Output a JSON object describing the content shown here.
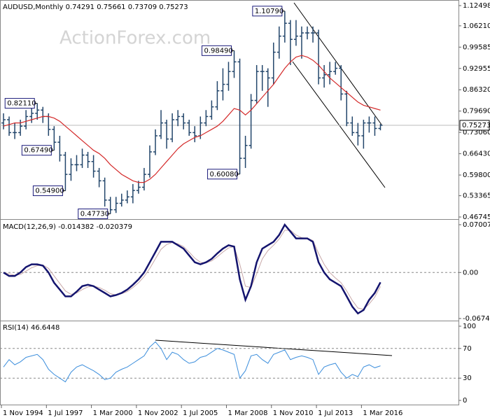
{
  "chart_data": [
    {
      "type": "ohlc",
      "title": "AUDUSD,Monthly",
      "watermark": "ActionForex.com",
      "color": "#23466b",
      "ma_color": "#d42a2a",
      "x": [
        "1994-11",
        "1995-03",
        "1995-07",
        "1995-11",
        "1996-03",
        "1996-07",
        "1996-11",
        "1997-03",
        "1997-07",
        "1997-11",
        "1998-03",
        "1998-07",
        "1998-11",
        "1999-03",
        "1999-07",
        "1999-11",
        "2000-03",
        "2000-07",
        "2000-11",
        "2001-03",
        "2001-07",
        "2001-11",
        "2002-03",
        "2002-07",
        "2002-11",
        "2003-03",
        "2003-07",
        "2003-11",
        "2004-03",
        "2004-07",
        "2004-11",
        "2005-03",
        "2005-07",
        "2005-11",
        "2006-03",
        "2006-07",
        "2006-11",
        "2007-03",
        "2007-07",
        "2007-11",
        "2008-03",
        "2008-07",
        "2008-11",
        "2009-03",
        "2009-07",
        "2009-11",
        "2010-03",
        "2010-07",
        "2010-11",
        "2011-03",
        "2011-07",
        "2011-11",
        "2012-03",
        "2012-07",
        "2012-11",
        "2013-03",
        "2013-07",
        "2013-11",
        "2014-03",
        "2014-07",
        "2014-11",
        "2015-03",
        "2015-07",
        "2015-11",
        "2016-03",
        "2016-07",
        "2016-11",
        "2017-03"
      ],
      "open": [
        0.76,
        0.77,
        0.73,
        0.73,
        0.75,
        0.78,
        0.79,
        0.8,
        0.78,
        0.74,
        0.7,
        0.66,
        0.6,
        0.63,
        0.63,
        0.66,
        0.64,
        0.61,
        0.58,
        0.52,
        0.49,
        0.51,
        0.52,
        0.53,
        0.55,
        0.56,
        0.6,
        0.67,
        0.72,
        0.76,
        0.71,
        0.77,
        0.78,
        0.76,
        0.73,
        0.72,
        0.76,
        0.78,
        0.81,
        0.86,
        0.88,
        0.92,
        0.95,
        0.65,
        0.69,
        0.83,
        0.92,
        0.92,
        0.9,
        0.98,
        1.03,
        1.07,
        1.02,
        1.03,
        1.04,
        1.04,
        1.04,
        0.9,
        0.91,
        0.92,
        0.93,
        0.85,
        0.76,
        0.73,
        0.72,
        0.76,
        0.76,
        0.74291
      ],
      "high": [
        0.79,
        0.78,
        0.76,
        0.77,
        0.8,
        0.81,
        0.8211,
        0.81,
        0.79,
        0.75,
        0.72,
        0.67,
        0.65,
        0.66,
        0.68,
        0.67,
        0.66,
        0.62,
        0.59,
        0.53,
        0.53,
        0.54,
        0.55,
        0.57,
        0.58,
        0.62,
        0.69,
        0.74,
        0.8,
        0.77,
        0.79,
        0.8,
        0.79,
        0.77,
        0.75,
        0.78,
        0.8,
        0.83,
        0.89,
        0.93,
        0.95,
        0.9849,
        0.96,
        0.72,
        0.85,
        0.94,
        0.94,
        0.93,
        1.01,
        1.06,
        1.1079,
        1.08,
        1.08,
        1.06,
        1.06,
        1.06,
        1.05,
        0.94,
        0.95,
        0.95,
        0.94,
        0.86,
        0.78,
        0.76,
        0.77,
        0.78,
        0.78,
        0.75661
      ],
      "low": [
        0.74,
        0.72,
        0.71,
        0.72,
        0.74,
        0.76,
        0.77,
        0.76,
        0.72,
        0.6749,
        0.64,
        0.549,
        0.58,
        0.61,
        0.62,
        0.62,
        0.59,
        0.56,
        0.5,
        0.4773,
        0.48,
        0.5,
        0.51,
        0.51,
        0.54,
        0.55,
        0.59,
        0.66,
        0.71,
        0.68,
        0.7,
        0.75,
        0.74,
        0.72,
        0.7,
        0.71,
        0.75,
        0.77,
        0.8,
        0.83,
        0.86,
        0.9,
        0.6008,
        0.62,
        0.68,
        0.82,
        0.86,
        0.81,
        0.88,
        0.96,
        1.01,
        0.94,
        1.0,
        0.96,
        1.02,
        1.01,
        0.88,
        0.87,
        0.88,
        0.91,
        0.83,
        0.75,
        0.72,
        0.69,
        0.68,
        0.73,
        0.72,
        0.73709
      ],
      "close": [
        0.77,
        0.73,
        0.73,
        0.75,
        0.78,
        0.79,
        0.8,
        0.78,
        0.74,
        0.7,
        0.66,
        0.6,
        0.63,
        0.63,
        0.66,
        0.64,
        0.61,
        0.58,
        0.52,
        0.49,
        0.51,
        0.52,
        0.53,
        0.55,
        0.56,
        0.6,
        0.67,
        0.72,
        0.76,
        0.71,
        0.77,
        0.78,
        0.76,
        0.73,
        0.72,
        0.76,
        0.78,
        0.81,
        0.86,
        0.88,
        0.92,
        0.95,
        0.65,
        0.69,
        0.83,
        0.92,
        0.92,
        0.9,
        0.98,
        1.03,
        1.07,
        1.02,
        1.03,
        1.04,
        1.04,
        1.04,
        0.9,
        0.91,
        0.92,
        0.93,
        0.85,
        0.76,
        0.73,
        0.72,
        0.76,
        0.76,
        0.74291,
        0.75273
      ],
      "ma": [
        0.75,
        0.755,
        0.76,
        0.76,
        0.765,
        0.77,
        0.775,
        0.78,
        0.78,
        0.775,
        0.765,
        0.75,
        0.735,
        0.72,
        0.705,
        0.69,
        0.675,
        0.665,
        0.65,
        0.63,
        0.615,
        0.6,
        0.59,
        0.58,
        0.575,
        0.575,
        0.585,
        0.6,
        0.62,
        0.64,
        0.66,
        0.68,
        0.695,
        0.705,
        0.715,
        0.72,
        0.73,
        0.74,
        0.75,
        0.765,
        0.785,
        0.805,
        0.8,
        0.785,
        0.8,
        0.82,
        0.84,
        0.86,
        0.88,
        0.905,
        0.93,
        0.95,
        0.965,
        0.97,
        0.965,
        0.955,
        0.94,
        0.92,
        0.9,
        0.885,
        0.87,
        0.855,
        0.84,
        0.825,
        0.815,
        0.81,
        0.805,
        0.8
      ],
      "annotations": [
        {
          "value": 1.1079,
          "label": "1.10790"
        },
        {
          "value": 0.9849,
          "label": "0.98490"
        },
        {
          "value": 0.8211,
          "label": "0.82110"
        },
        {
          "value": 0.6749,
          "label": "0.67490"
        },
        {
          "value": 0.549,
          "label": "0.54900"
        },
        {
          "value": 0.4773,
          "label": "0.47730"
        },
        {
          "value": 0.6008,
          "label": "0.60080"
        }
      ],
      "xlim": [
        "1994-10",
        "2021-12"
      ],
      "xticks": [
        {
          "value": "1994-11",
          "label": "1 Nov 1994"
        },
        {
          "value": "1997-07",
          "label": "1 Jul 1997"
        },
        {
          "value": "2000-03",
          "label": "1 Mar 2000"
        },
        {
          "value": "2002-11",
          "label": "1 Nov 2002"
        },
        {
          "value": "2005-07",
          "label": "1 Jul 2005"
        },
        {
          "value": "2008-03",
          "label": "1 Mar 2008"
        },
        {
          "value": "2010-11",
          "label": "1 Nov 2010"
        },
        {
          "value": "2013-07",
          "label": "1 Jul 2013"
        },
        {
          "value": "2016-03",
          "label": "1 Mar 2016"
        }
      ],
      "ylim": [
        0.46745,
        1.12498
      ],
      "yticks": [
        1.12498,
        {
          "value": 1.0621,
          "label": "1.06210"
        },
        0.99585,
        0.92955,
        {
          "value": 0.8632,
          "label": "0.86320"
        },
        {
          "value": 0.7969,
          "label": "0.79690"
        },
        {
          "value": 0.7306,
          "label": "0.73060"
        },
        {
          "value": 0.6643,
          "label": "0.66430"
        },
        {
          "value": 0.598,
          "label": "0.59800"
        },
        0.53365,
        0.46745
      ],
      "grid": false
    },
    {
      "type": "macd",
      "title": "MACD(12,26,9)",
      "color": "#14146e",
      "signal_color": "#c8a8a8",
      "macd": [
        0,
        -0.005,
        -0.005,
        0,
        0.008,
        0.012,
        0.012,
        0.01,
        0,
        -0.015,
        -0.025,
        -0.035,
        -0.035,
        -0.028,
        -0.02,
        -0.018,
        -0.02,
        -0.025,
        -0.03,
        -0.035,
        -0.033,
        -0.03,
        -0.025,
        -0.018,
        -0.01,
        0,
        0.015,
        0.03,
        0.045,
        0.045,
        0.045,
        0.04,
        0.035,
        0.025,
        0.015,
        0.012,
        0.015,
        0.02,
        0.028,
        0.035,
        0.04,
        0.038,
        -0.01,
        -0.04,
        -0.02,
        0.015,
        0.035,
        0.04,
        0.045,
        0.055,
        0.07,
        0.06,
        0.05,
        0.05,
        0.05,
        0.045,
        0.015,
        0,
        -0.01,
        -0.015,
        -0.02,
        -0.035,
        -0.05,
        -0.06,
        -0.055,
        -0.04,
        -0.03,
        -0.014382
      ],
      "signal": [
        0,
        -0.002,
        -0.004,
        -0.003,
        0.002,
        0.007,
        0.01,
        0.011,
        0.006,
        -0.005,
        -0.016,
        -0.027,
        -0.032,
        -0.03,
        -0.025,
        -0.021,
        -0.02,
        -0.022,
        -0.026,
        -0.031,
        -0.033,
        -0.031,
        -0.028,
        -0.022,
        -0.015,
        -0.006,
        0.006,
        0.02,
        0.034,
        0.041,
        0.044,
        0.042,
        0.038,
        0.03,
        0.021,
        0.015,
        0.014,
        0.017,
        0.023,
        0.03,
        0.036,
        0.038,
        0.012,
        -0.02,
        -0.022,
        -0.002,
        0.02,
        0.032,
        0.04,
        0.049,
        0.062,
        0.062,
        0.055,
        0.051,
        0.05,
        0.047,
        0.028,
        0.012,
        0,
        -0.008,
        -0.015,
        -0.027,
        -0.041,
        -0.052,
        -0.054,
        -0.046,
        -0.036,
        -0.020379
      ],
      "ylim": [
        -0.067423,
        0.070071
      ],
      "yticks": [
        0.070071,
        {
          "value": 0,
          "label": "0.00"
        },
        -0.067423
      ],
      "grid": "dashed"
    },
    {
      "type": "rsi",
      "title": "RSI(14)",
      "color": "#3c8edc",
      "values": [
        45,
        55,
        48,
        52,
        58,
        60,
        62,
        55,
        42,
        35,
        30,
        25,
        38,
        45,
        48,
        44,
        40,
        35,
        28,
        30,
        38,
        42,
        45,
        50,
        55,
        60,
        72,
        79,
        70,
        55,
        65,
        62,
        55,
        50,
        52,
        58,
        60,
        65,
        70,
        68,
        65,
        62,
        30,
        40,
        60,
        62,
        55,
        50,
        62,
        65,
        68,
        55,
        58,
        60,
        58,
        55,
        35,
        45,
        48,
        50,
        38,
        30,
        35,
        32,
        45,
        48,
        44,
        46.6448
      ],
      "ylim": [
        0,
        100
      ],
      "yticks": [
        100,
        70,
        30,
        0
      ],
      "grid": "dashed"
    }
  ]
}
